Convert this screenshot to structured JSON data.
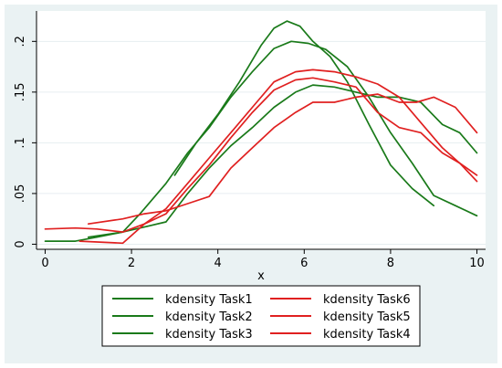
{
  "chart_data": {
    "type": "line",
    "xlabel": "x",
    "ylabel": "",
    "xlim": [
      -0.2,
      10.2
    ],
    "ylim": [
      -0.005,
      0.23
    ],
    "xticks": [
      0,
      2,
      4,
      6,
      8,
      10
    ],
    "xtick_labels": [
      "0",
      "2",
      "4",
      "6",
      "8",
      "10"
    ],
    "yticks": [
      0,
      0.05,
      0.1,
      0.15,
      0.2
    ],
    "ytick_labels": [
      "0",
      ".05",
      ".1",
      ".15",
      ".2"
    ],
    "grid": "horizontal",
    "legend_position": "bottom",
    "series": [
      {
        "name": "kdensity Task1",
        "color": "#1a7a1a",
        "x": [
          3,
          3.5,
          4,
          4.5,
          5,
          5.3,
          5.6,
          5.9,
          6.2,
          6.6,
          7,
          7.5,
          8,
          8.5,
          9
        ],
        "y": [
          0.068,
          0.1,
          0.128,
          0.16,
          0.196,
          0.213,
          0.22,
          0.215,
          0.2,
          0.185,
          0.16,
          0.118,
          0.078,
          0.055,
          0.038
        ]
      },
      {
        "name": "kdensity Task2",
        "color": "#1a7a1a",
        "x": [
          0,
          0.7,
          1.2,
          1.8,
          2.2,
          2.8,
          3.3,
          3.8,
          4.3,
          4.8,
          5.3,
          5.7,
          6.1,
          6.5,
          7,
          7.5,
          8,
          8.5,
          9,
          9.5,
          10
        ],
        "y": [
          0.003,
          0.003,
          0.007,
          0.012,
          0.03,
          0.06,
          0.09,
          0.115,
          0.145,
          0.17,
          0.193,
          0.2,
          0.198,
          0.192,
          0.175,
          0.145,
          0.11,
          0.08,
          0.048,
          0.038,
          0.028
        ]
      },
      {
        "name": "kdensity Task3",
        "color": "#1a7a1a",
        "x": [
          1,
          1.8,
          2.2,
          2.8,
          3.3,
          3.8,
          4.3,
          4.8,
          5.3,
          5.8,
          6.2,
          6.7,
          7.2,
          7.7,
          8.2,
          8.7,
          9.2,
          9.6,
          10
        ],
        "y": [
          0.007,
          0.012,
          0.016,
          0.022,
          0.05,
          0.075,
          0.097,
          0.115,
          0.135,
          0.15,
          0.157,
          0.155,
          0.15,
          0.145,
          0.145,
          0.14,
          0.118,
          0.11,
          0.09
        ]
      },
      {
        "name": "kdensity Task6",
        "color": "#e02020",
        "x": [
          1,
          1.8,
          2.3,
          2.8,
          3.3,
          3.8,
          4.3,
          4.8,
          5.3,
          5.8,
          6.2,
          6.7,
          7.2,
          7.7,
          8.2,
          8.6,
          9,
          9.5,
          10
        ],
        "y": [
          0.02,
          0.025,
          0.03,
          0.033,
          0.04,
          0.047,
          0.075,
          0.095,
          0.115,
          0.13,
          0.14,
          0.14,
          0.145,
          0.148,
          0.14,
          0.14,
          0.145,
          0.135,
          0.11
        ]
      },
      {
        "name": "kdensity Task5",
        "color": "#e02020",
        "x": [
          0,
          0.7,
          1.2,
          1.8,
          2.3,
          2.8,
          3.3,
          3.8,
          4.3,
          4.8,
          5.3,
          5.8,
          6.2,
          6.7,
          7.2,
          7.7,
          8.2,
          8.7,
          9.2,
          9.6,
          10
        ],
        "y": [
          0.015,
          0.016,
          0.015,
          0.012,
          0.02,
          0.03,
          0.055,
          0.078,
          0.105,
          0.13,
          0.152,
          0.162,
          0.164,
          0.16,
          0.155,
          0.13,
          0.115,
          0.11,
          0.09,
          0.08,
          0.068
        ]
      },
      {
        "name": "kdensity Task4",
        "color": "#e02020",
        "x": [
          0.8,
          1.8,
          2.3,
          2.8,
          3.3,
          3.8,
          4.3,
          4.8,
          5.3,
          5.8,
          6.2,
          6.7,
          7.2,
          7.7,
          8.2,
          8.7,
          9.2,
          9.6,
          10
        ],
        "y": [
          0.003,
          0.001,
          0.02,
          0.035,
          0.06,
          0.085,
          0.11,
          0.135,
          0.16,
          0.17,
          0.172,
          0.17,
          0.165,
          0.158,
          0.145,
          0.12,
          0.095,
          0.08,
          0.062
        ]
      }
    ],
    "legend_order": [
      [
        "kdensity Task1",
        "kdensity Task6"
      ],
      [
        "kdensity Task2",
        "kdensity Task5"
      ],
      [
        "kdensity Task3",
        "kdensity Task4"
      ]
    ]
  }
}
